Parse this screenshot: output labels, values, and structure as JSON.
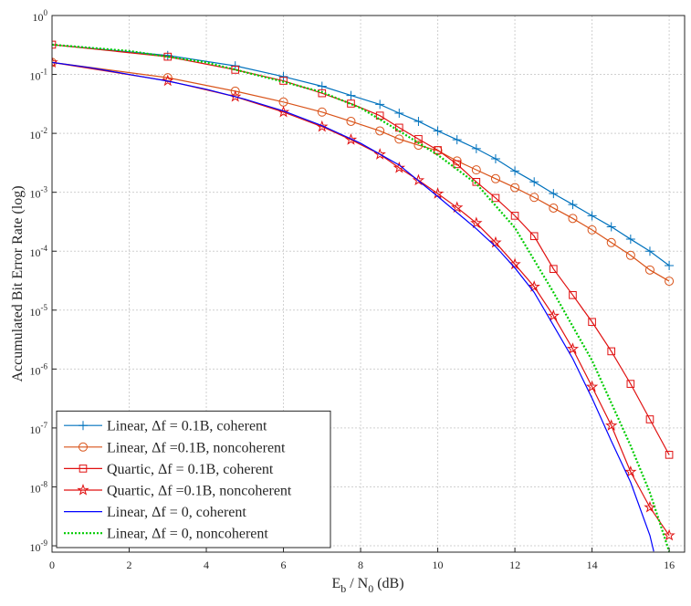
{
  "chart_data": {
    "type": "line",
    "xlabel": "E_b / N_0 (dB)",
    "ylabel": "Accumulated Bit Error Rate (log)",
    "xlim": [
      0,
      16.4
    ],
    "xticks": [
      0,
      2,
      4,
      6,
      8,
      10,
      12,
      14,
      16
    ],
    "ylim": [
      7.8e-10,
      1
    ],
    "log_y": true,
    "grid": true,
    "legend": "lower left",
    "yticks": [
      {
        "value": 1e-09,
        "label": "10^-9"
      },
      {
        "value": 1e-08,
        "label": "10^-8"
      },
      {
        "value": 1e-07,
        "label": "10^-7"
      },
      {
        "value": 1e-06,
        "label": "10^-6"
      },
      {
        "value": 1e-05,
        "label": "10^-5"
      },
      {
        "value": 0.0001,
        "label": "10^-4"
      },
      {
        "value": 0.001,
        "label": "10^-3"
      },
      {
        "value": 0.01,
        "label": "10^-2"
      },
      {
        "value": 0.1,
        "label": "10^-1"
      },
      {
        "value": 1,
        "label": "10^0"
      }
    ],
    "series": [
      {
        "name": "Linear, Δf = 0.1B, coherent",
        "color": "#0072bd",
        "marker": "plus",
        "dash": "solid",
        "x": [
          0,
          3,
          4.75,
          6,
          7,
          7.75,
          8.5,
          9,
          9.5,
          10,
          10.5,
          11,
          11.5,
          12,
          12.5,
          13,
          13.5,
          14,
          14.5,
          15,
          15.5,
          16
        ],
        "values": [
          0.32,
          0.21,
          0.14,
          0.092,
          0.063,
          0.044,
          0.031,
          0.022,
          0.016,
          0.011,
          0.0078,
          0.0055,
          0.0037,
          0.0023,
          0.0015,
          0.00095,
          0.00062,
          0.0004,
          0.00026,
          0.00016,
          0.0001,
          5.7e-05
        ]
      },
      {
        "name": "Linear, Δf =0.1B, noncoherent",
        "color": "#d95319",
        "marker": "circle",
        "dash": "solid",
        "x": [
          0,
          3,
          4.75,
          6,
          7,
          7.75,
          8.5,
          9,
          9.5,
          10,
          10.5,
          11,
          11.5,
          12,
          12.5,
          13,
          13.5,
          14,
          14.5,
          15,
          15.5,
          16
        ],
        "values": [
          0.16,
          0.088,
          0.052,
          0.034,
          0.023,
          0.016,
          0.011,
          0.008,
          0.0063,
          0.0051,
          0.0034,
          0.0024,
          0.0017,
          0.0012,
          0.00082,
          0.00054,
          0.00036,
          0.00023,
          0.00014,
          8.5e-05,
          4.8e-05,
          3.1e-05
        ]
      },
      {
        "name": "Quartic, Δf = 0.1B, coherent",
        "color": "#e01010",
        "marker": "square",
        "dash": "solid",
        "x": [
          0,
          3,
          4.75,
          6,
          7,
          7.75,
          8.5,
          9,
          9.5,
          10,
          10.5,
          11,
          11.5,
          12,
          12.5,
          13,
          13.5,
          14,
          14.5,
          15,
          15.5,
          16
        ],
        "values": [
          0.32,
          0.2,
          0.12,
          0.078,
          0.048,
          0.032,
          0.02,
          0.0125,
          0.008,
          0.0052,
          0.003,
          0.0015,
          0.0008,
          0.0004,
          0.00018,
          5e-05,
          1.8e-05,
          6.3e-06,
          2e-06,
          5.6e-07,
          1.4e-07,
          3.5e-08
        ]
      },
      {
        "name": "Quartic, Δf =0.1B, noncoherent",
        "color": "#e01010",
        "marker": "star",
        "dash": "solid",
        "x": [
          0,
          3,
          4.75,
          6,
          7,
          7.75,
          8.5,
          9,
          9.5,
          10,
          10.5,
          11,
          11.5,
          12,
          12.5,
          13,
          13.5,
          14,
          14.5,
          15,
          15.5,
          16
        ],
        "values": [
          0.16,
          0.078,
          0.042,
          0.023,
          0.013,
          0.0078,
          0.0044,
          0.0026,
          0.0016,
          0.00095,
          0.00055,
          0.0003,
          0.00014,
          6e-05,
          2.5e-05,
          8e-06,
          2.2e-06,
          5e-07,
          1.1e-07,
          1.8e-08,
          4.5e-09,
          1.5e-09
        ]
      },
      {
        "name": "Linear, Δf = 0, coherent",
        "color": "#0000ff",
        "marker": "none",
        "dash": "solid",
        "x": [
          0,
          1,
          2,
          3,
          4,
          5,
          6,
          7,
          8,
          9,
          10,
          11,
          11.5,
          12,
          12.5,
          13,
          13.5,
          14,
          14.5,
          15,
          15.5,
          15.6
        ],
        "values": [
          0.16,
          0.13,
          0.1,
          0.077,
          0.056,
          0.038,
          0.024,
          0.0135,
          0.0068,
          0.0029,
          0.00085,
          0.00024,
          0.00012,
          5.2e-05,
          2e-05,
          5.5e-06,
          1.5e-06,
          3.2e-07,
          6e-08,
          1.2e-08,
          1.5e-09,
          8e-10
        ]
      },
      {
        "name": "Linear, Δf = 0, noncoherent",
        "color": "#00cc00",
        "marker": "none",
        "dash": "dotted",
        "x": [
          0,
          2,
          4,
          6,
          7,
          8,
          9,
          10,
          11,
          12,
          13,
          14,
          15,
          15.5,
          16
        ],
        "values": [
          0.32,
          0.25,
          0.16,
          0.075,
          0.05,
          0.027,
          0.011,
          0.0043,
          0.0014,
          0.00025,
          2e-05,
          1.4e-06,
          5e-08,
          8e-09,
          8e-10
        ]
      }
    ]
  }
}
